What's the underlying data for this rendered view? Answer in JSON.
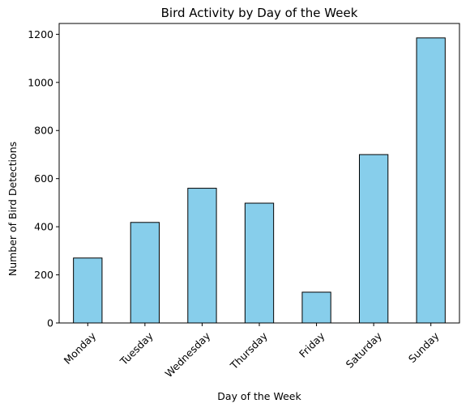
{
  "chart_data": {
    "type": "bar",
    "title": "Bird Activity by Day of the Week",
    "xlabel": "Day of the Week",
    "ylabel": "Number of Bird Detections",
    "categories": [
      "Monday",
      "Tuesday",
      "Wednesday",
      "Thursday",
      "Friday",
      "Saturday",
      "Sunday"
    ],
    "values": [
      270,
      418,
      560,
      498,
      128,
      700,
      1185
    ],
    "ylim": [
      0,
      1245
    ],
    "yticks": [
      0,
      200,
      400,
      600,
      800,
      1000,
      1200
    ],
    "grid": false,
    "bar_color": "#87ceeb",
    "edge_color": "#000000"
  }
}
